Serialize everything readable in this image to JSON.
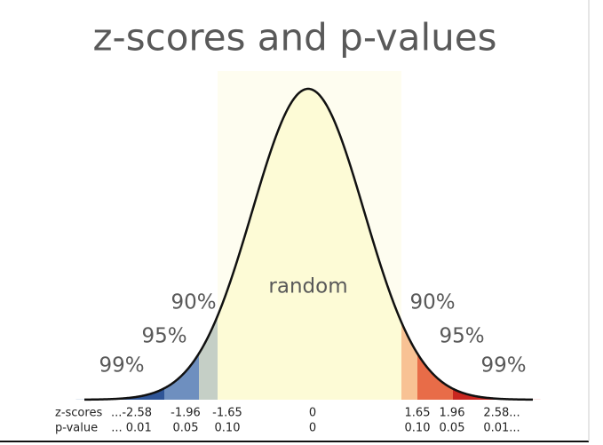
{
  "title": "z-scores and p-values",
  "center_label": "random",
  "left_labels": [
    "90%",
    "95%",
    "99%"
  ],
  "right_labels": [
    "90%",
    "95%",
    "99%"
  ],
  "table": {
    "row_headers": [
      "z-scores",
      "p-value"
    ],
    "rows": [
      [
        "...-2.58",
        "-1.96",
        "-1.65",
        "0",
        "1.65",
        "1.96",
        "2.58..."
      ],
      [
        "... 0.01",
        "0.05",
        "0.10",
        "0",
        "0.10",
        "0.05",
        "0.01..."
      ]
    ]
  }
}
